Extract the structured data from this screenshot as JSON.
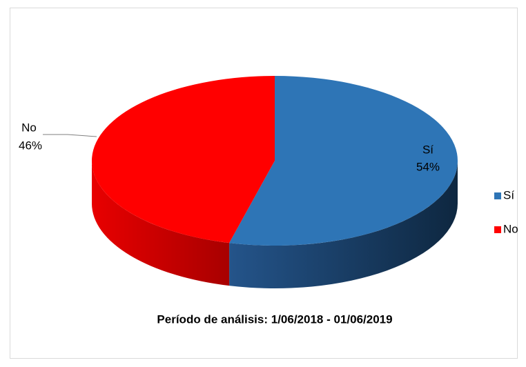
{
  "chart_data": {
    "type": "pie",
    "title": "Período de análisis: 1/06/2018 - 01/06/2019",
    "categories": [
      "Sí",
      "No"
    ],
    "values": [
      54,
      46
    ],
    "value_labels": [
      "54%",
      "46%"
    ],
    "colors": [
      "#2e75b6",
      "#ff0000"
    ],
    "legend": "right"
  }
}
